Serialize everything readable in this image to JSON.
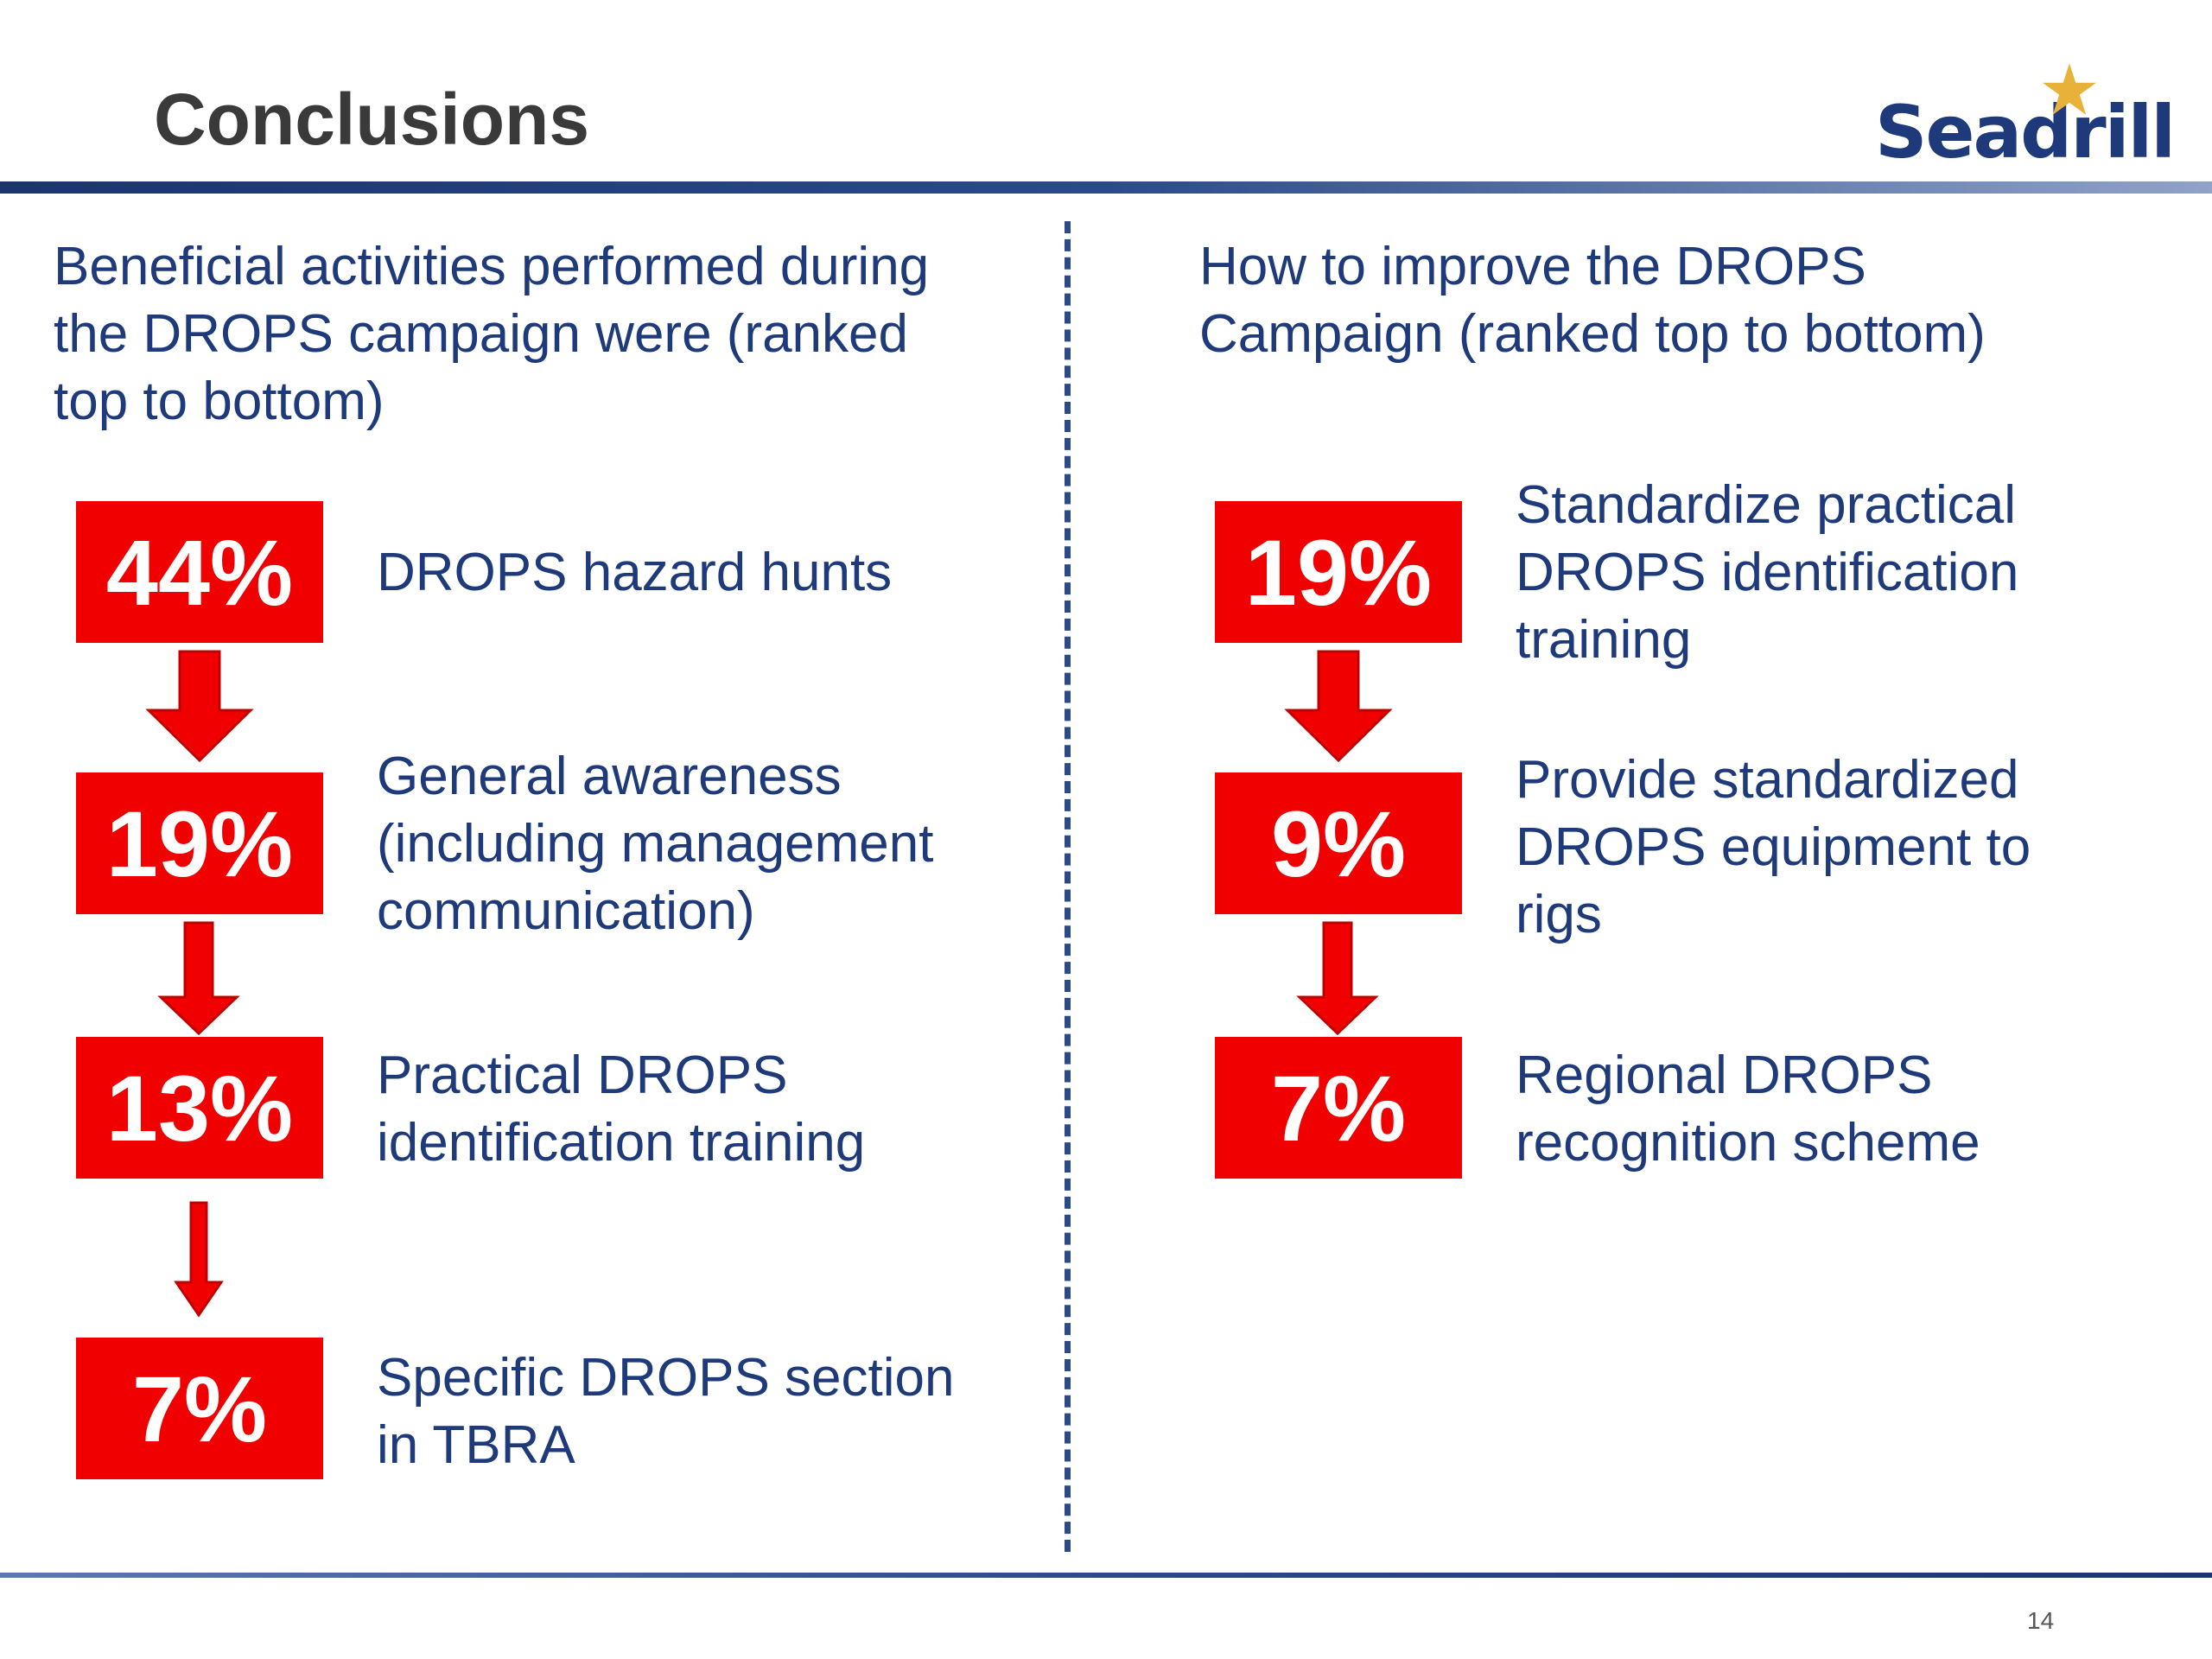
{
  "slide": {
    "title": "Conclusions",
    "logo_text": "Seadrill",
    "page_number": "14",
    "colors": {
      "badge_red": "#f00000",
      "text_blue": "#1e3a7b",
      "title_gray": "#3a3a3a",
      "logo_star": "#e8b23a"
    }
  },
  "left": {
    "heading": "Beneficial activities performed during\nthe DROPS campaign were (ranked\ntop to bottom)",
    "items": [
      {
        "percent": "44%",
        "label": "DROPS hazard hunts"
      },
      {
        "percent": "19%",
        "label": "General awareness\n(including management\ncommunication)"
      },
      {
        "percent": "13%",
        "label": "Practical DROPS\nidentification training"
      },
      {
        "percent": "7%",
        "label": "Specific DROPS section\nin TBRA"
      }
    ]
  },
  "right": {
    "heading": "How to improve the DROPS\nCampaign (ranked top to bottom)",
    "items": [
      {
        "percent": "19%",
        "label": "Standardize practical\nDROPS identification\ntraining"
      },
      {
        "percent": "9%",
        "label": "Provide standardized\nDROPS equipment to\nrigs"
      },
      {
        "percent": "7%",
        "label": "Regional DROPS\nrecognition scheme"
      }
    ]
  }
}
